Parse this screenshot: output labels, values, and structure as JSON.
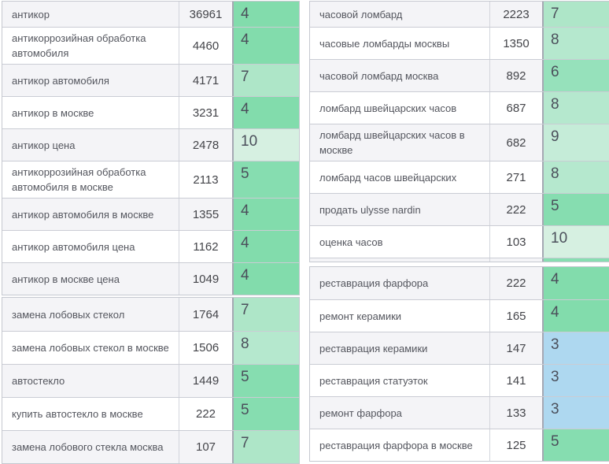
{
  "position_colors": {
    "3": "#aed8f0",
    "4": "#82dcac",
    "5": "#86ddb0",
    "6": "#96e1bb",
    "7": "#aee6c8",
    "8": "#b5e8ce",
    "9": "#c5ecd8",
    "10": "#d6f0e1"
  },
  "tables": {
    "left": [
      {
        "name": "antikor",
        "first_row_clipped": true,
        "rows": [
          {
            "keyword": "антикор",
            "volume": "36961",
            "position": "4"
          },
          {
            "keyword": "антикоррозийная обработка автомобиля",
            "volume": "4460",
            "position": "4"
          },
          {
            "keyword": "антикор автомобиля",
            "volume": "4171",
            "position": "7"
          },
          {
            "keyword": "антикор в москве",
            "volume": "3231",
            "position": "4"
          },
          {
            "keyword": "антикор цена",
            "volume": "2478",
            "position": "10"
          },
          {
            "keyword": "антикоррозийная обработка автомобиля в москве",
            "volume": "2113",
            "position": "5"
          },
          {
            "keyword": "антикор автомобиля в москве",
            "volume": "1355",
            "position": "4"
          },
          {
            "keyword": "антикор автомобиля цена",
            "volume": "1162",
            "position": "4"
          },
          {
            "keyword": "антикор в москве цена",
            "volume": "1049",
            "position": "4"
          }
        ]
      },
      {
        "name": "avtosteklo",
        "first_row_clipped": false,
        "rows": [
          {
            "keyword": "замена лобовых стекол",
            "volume": "1764",
            "position": "7"
          },
          {
            "keyword": "замена лобовых стекол в москве",
            "volume": "1506",
            "position": "8"
          },
          {
            "keyword": "автостекло",
            "volume": "1449",
            "position": "5"
          },
          {
            "keyword": "купить автостекло в москве",
            "volume": "222",
            "position": "5"
          },
          {
            "keyword": "замена лобового стекла москва",
            "volume": "107",
            "position": "7"
          }
        ]
      }
    ],
    "right": [
      {
        "name": "lombard",
        "first_row_clipped": true,
        "partial_next_row_visible": true,
        "partial_next_row_color": "#87deb1",
        "rows": [
          {
            "keyword": "часовой ломбард",
            "volume": "2223",
            "position": "7"
          },
          {
            "keyword": "часовые ломбарды москвы",
            "volume": "1350",
            "position": "8"
          },
          {
            "keyword": "часовой ломбард москва",
            "volume": "892",
            "position": "6"
          },
          {
            "keyword": "ломбард швейцарских часов",
            "volume": "687",
            "position": "8"
          },
          {
            "keyword": "ломбард швейцарских часов в москве",
            "volume": "682",
            "position": "9"
          },
          {
            "keyword": "ломбард часов швейцарских",
            "volume": "271",
            "position": "8"
          },
          {
            "keyword": "продать ulysse nardin",
            "volume": "222",
            "position": "5"
          },
          {
            "keyword": "оценка часов",
            "volume": "103",
            "position": "10"
          }
        ]
      },
      {
        "name": "restavratsiya",
        "first_row_clipped": false,
        "rows": [
          {
            "keyword": "реставрация фарфора",
            "volume": "222",
            "position": "4"
          },
          {
            "keyword": "ремонт керамики",
            "volume": "165",
            "position": "4"
          },
          {
            "keyword": "реставрация керамики",
            "volume": "147",
            "position": "3"
          },
          {
            "keyword": "реставрация статуэток",
            "volume": "141",
            "position": "3"
          },
          {
            "keyword": "ремонт фарфора",
            "volume": "133",
            "position": "3"
          },
          {
            "keyword": "реставрация фарфора в москве",
            "volume": "125",
            "position": "5"
          }
        ]
      }
    ]
  }
}
